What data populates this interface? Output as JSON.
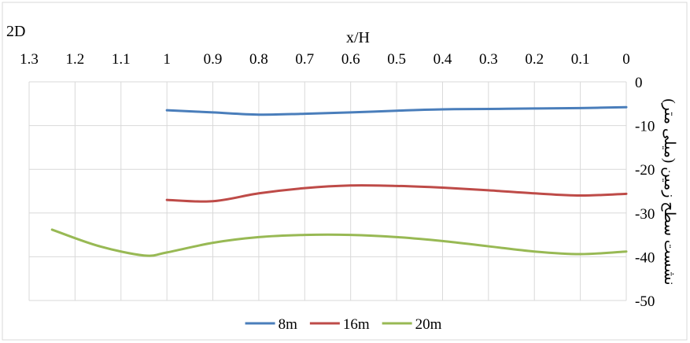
{
  "chart_data": {
    "type": "line",
    "title": "2D",
    "xlabel": "x/H",
    "ylabel": "نشست سطح زمین (میلی متر)",
    "x_axis_position": "top",
    "x_reversed": true,
    "y_axis_position": "right",
    "xlim": [
      0,
      1.3
    ],
    "ylim": [
      -50,
      0
    ],
    "x_ticks": [
      1.3,
      1.2,
      1.1,
      1,
      0.9,
      0.8,
      0.7,
      0.6,
      0.5,
      0.4,
      0.3,
      0.2,
      0.1,
      0
    ],
    "x_tick_labels": [
      "1.3",
      "1.2",
      "1.1",
      "1",
      "0.9",
      "0.8",
      "0.7",
      "0.6",
      "0.5",
      "0.4",
      "0.3",
      "0.2",
      "0.1",
      "0"
    ],
    "y_ticks": [
      0,
      -10,
      -20,
      -30,
      -40,
      -50
    ],
    "y_tick_labels": [
      "0",
      "-10",
      "-20",
      "-30",
      "-40",
      "-50"
    ],
    "grid": true,
    "legend_position": "bottom",
    "series": [
      {
        "name": "8m",
        "color": "#4a7ebb",
        "x": [
          1,
          0.9,
          0.8,
          0.7,
          0.6,
          0.5,
          0.4,
          0.3,
          0.2,
          0.1,
          0
        ],
        "y": [
          -6.5,
          -7.0,
          -7.5,
          -7.3,
          -7.0,
          -6.6,
          -6.3,
          -6.2,
          -6.1,
          -6.0,
          -5.8
        ]
      },
      {
        "name": "16m",
        "color": "#be4b48",
        "x": [
          1,
          0.9,
          0.8,
          0.7,
          0.6,
          0.5,
          0.4,
          0.3,
          0.2,
          0.1,
          0
        ],
        "y": [
          -27.0,
          -27.3,
          -25.5,
          -24.3,
          -23.7,
          -23.8,
          -24.2,
          -24.8,
          -25.5,
          -26.0,
          -25.6
        ]
      },
      {
        "name": "20m",
        "color": "#98b954",
        "x": [
          1.25,
          1.15,
          1.05,
          1,
          0.9,
          0.8,
          0.7,
          0.6,
          0.5,
          0.4,
          0.3,
          0.2,
          0.1,
          0
        ],
        "y": [
          -33.8,
          -37.5,
          -39.7,
          -39.0,
          -36.8,
          -35.5,
          -35.0,
          -35.0,
          -35.5,
          -36.4,
          -37.6,
          -38.8,
          -39.4,
          -38.8
        ]
      }
    ]
  }
}
